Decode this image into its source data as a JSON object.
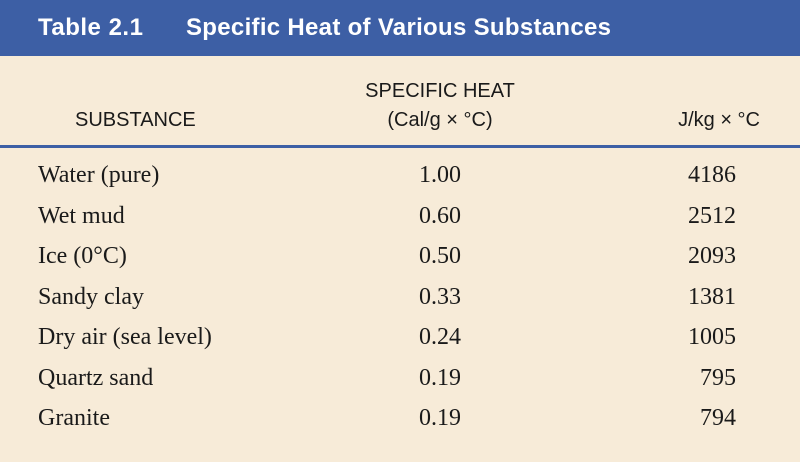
{
  "title": {
    "number": "Table 2.1",
    "text": "Specific Heat of Various Substances"
  },
  "headers": {
    "substance": "SUBSTANCE",
    "group": "SPECIFIC HEAT",
    "cal": "(Cal/g × °C)",
    "jkg": "J/kg × °C"
  },
  "rows": [
    {
      "substance": "Water (pure)",
      "cal": "1.00",
      "jkg": "4186"
    },
    {
      "substance": "Wet mud",
      "cal": "0.60",
      "jkg": "2512"
    },
    {
      "substance": "Ice (0°C)",
      "cal": "0.50",
      "jkg": "2093"
    },
    {
      "substance": "Sandy clay",
      "cal": "0.33",
      "jkg": "1381"
    },
    {
      "substance": "Dry air (sea level)",
      "cal": "0.24",
      "jkg": "1005"
    },
    {
      "substance": "Quartz sand",
      "cal": "0.19",
      "jkg": "795"
    },
    {
      "substance": "Granite",
      "cal": "0.19",
      "jkg": "794"
    }
  ],
  "colors": {
    "title_bar": "#3d5fa5",
    "background": "#f7ebd8"
  }
}
